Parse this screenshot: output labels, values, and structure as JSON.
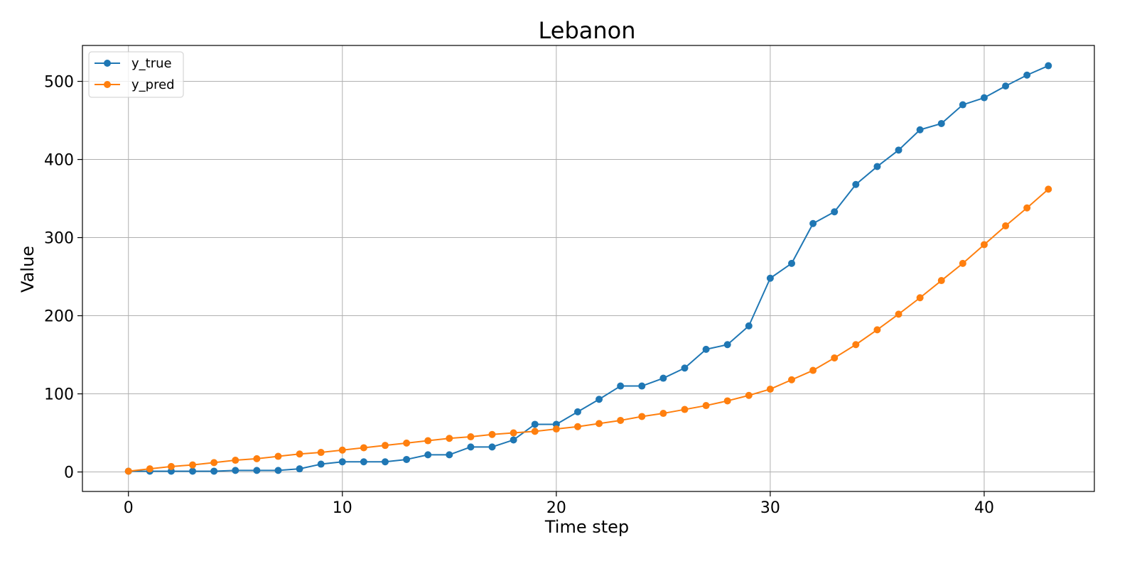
{
  "chart_data": {
    "type": "line",
    "title": "Lebanon",
    "xlabel": "Time step",
    "ylabel": "Value",
    "xlim": [
      -2.15,
      45.15
    ],
    "ylim": [
      -24.95,
      545.95
    ],
    "xticks": [
      0,
      10,
      20,
      30,
      40
    ],
    "yticks": [
      0,
      100,
      200,
      300,
      400,
      500
    ],
    "grid": true,
    "legend_position": "top-left",
    "x": [
      0,
      1,
      2,
      3,
      4,
      5,
      6,
      7,
      8,
      9,
      10,
      11,
      12,
      13,
      14,
      15,
      16,
      17,
      18,
      19,
      20,
      21,
      22,
      23,
      24,
      25,
      26,
      27,
      28,
      29,
      30,
      31,
      32,
      33,
      34,
      35,
      36,
      37,
      38,
      39,
      40,
      41,
      42,
      43
    ],
    "series": [
      {
        "name": "y_true",
        "color": "#1f77b4",
        "values": [
          1,
          1,
          1,
          1,
          1,
          2,
          2,
          2,
          4,
          10,
          13,
          13,
          13,
          16,
          22,
          22,
          32,
          32,
          41,
          61,
          61,
          77,
          93,
          110,
          110,
          120,
          133,
          157,
          163,
          187,
          248,
          267,
          318,
          333,
          368,
          391,
          412,
          438,
          446,
          470,
          479,
          494,
          508,
          520
        ]
      },
      {
        "name": "y_pred",
        "color": "#ff7f0e",
        "values": [
          1,
          4,
          7,
          9,
          12,
          15,
          17,
          20,
          23,
          25,
          28,
          31,
          34,
          37,
          40,
          43,
          45,
          48,
          50,
          52,
          55,
          58,
          62,
          66,
          71,
          75,
          80,
          85,
          91,
          98,
          106,
          118,
          130,
          146,
          163,
          182,
          202,
          223,
          245,
          267,
          291,
          315,
          338,
          362
        ]
      }
    ]
  }
}
